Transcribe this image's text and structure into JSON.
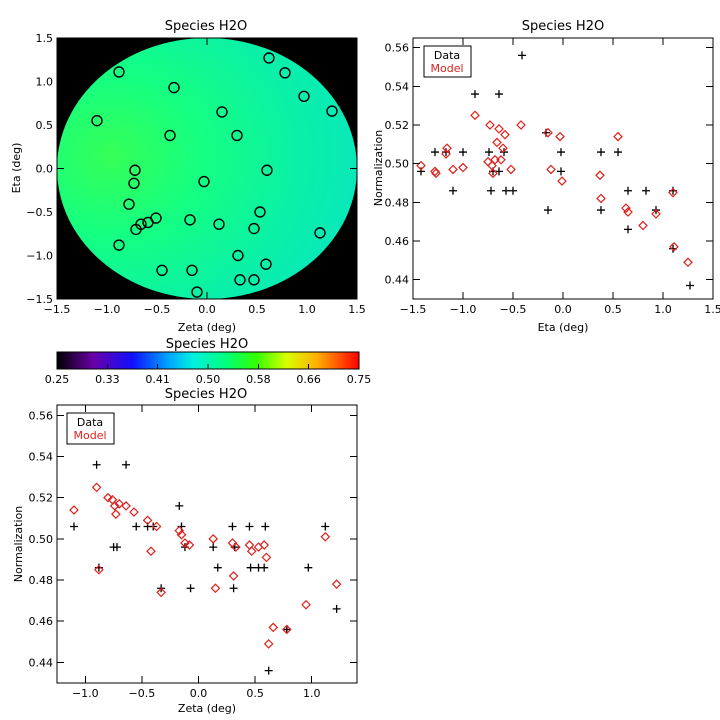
{
  "chart_data": [
    {
      "type": "heatmap",
      "title": "Species H2O",
      "xlabel": "Zeta (deg)",
      "ylabel": "Eta (deg)",
      "xlim": [
        -1.5,
        1.5
      ],
      "ylim": [
        -1.5,
        1.5
      ],
      "x_ticks": [
        "−1.5",
        "−1.0",
        "−0.5",
        "0.0",
        "0.5",
        "1.0",
        "1.5"
      ],
      "y_ticks": [
        "−1.5",
        "−1.0",
        "−0.5",
        "0.0",
        "0.5",
        "1.0",
        "1.5"
      ],
      "field_value_approx": 0.5,
      "markers": [
        {
          "x": -0.88,
          "y": 1.11
        },
        {
          "x": -0.33,
          "y": 0.93
        },
        {
          "x": -1.1,
          "y": 0.55
        },
        {
          "x": -0.37,
          "y": 0.38
        },
        {
          "x": 0.15,
          "y": 0.65
        },
        {
          "x": 0.3,
          "y": 0.38
        },
        {
          "x": 0.62,
          "y": 1.27
        },
        {
          "x": 0.78,
          "y": 1.1
        },
        {
          "x": 0.97,
          "y": 0.83
        },
        {
          "x": 1.25,
          "y": 0.66
        },
        {
          "x": -0.72,
          "y": -0.02
        },
        {
          "x": -0.73,
          "y": -0.17
        },
        {
          "x": -0.03,
          "y": -0.15
        },
        {
          "x": 0.6,
          "y": -0.02
        },
        {
          "x": -0.78,
          "y": -0.41
        },
        {
          "x": -0.51,
          "y": -0.57
        },
        {
          "x": -0.59,
          "y": -0.62
        },
        {
          "x": -0.66,
          "y": -0.64
        },
        {
          "x": -0.71,
          "y": -0.7
        },
        {
          "x": -0.88,
          "y": -0.88
        },
        {
          "x": -0.17,
          "y": -0.59
        },
        {
          "x": 0.12,
          "y": -0.64
        },
        {
          "x": 0.53,
          "y": -0.5
        },
        {
          "x": 0.47,
          "y": -0.69
        },
        {
          "x": 1.13,
          "y": -0.74
        },
        {
          "x": 0.31,
          "y": -1.0
        },
        {
          "x": 0.59,
          "y": -1.1
        },
        {
          "x": -0.45,
          "y": -1.17
        },
        {
          "x": -0.15,
          "y": -1.17
        },
        {
          "x": 0.33,
          "y": -1.28
        },
        {
          "x": 0.47,
          "y": -1.28
        },
        {
          "x": -0.1,
          "y": -1.42
        }
      ]
    },
    {
      "type": "scatter",
      "title": "Species H2O",
      "xlabel": "Eta (deg)",
      "ylabel": "Normalization",
      "xlim": [
        -1.5,
        1.5
      ],
      "ylim": [
        0.43,
        0.565
      ],
      "x_ticks": [
        "−1.5",
        "−1.0",
        "−0.5",
        "0.0",
        "0.5",
        "1.0",
        "1.5"
      ],
      "y_ticks": [
        "0.44",
        "0.46",
        "0.48",
        "0.50",
        "0.52",
        "0.54",
        "0.56"
      ],
      "legend": {
        "position": "top-left",
        "entries": [
          "Data",
          "Model"
        ]
      },
      "series": [
        {
          "name": "Data",
          "marker": "plus",
          "color": "#000000",
          "points": [
            [
              -1.42,
              0.496
            ],
            [
              -1.28,
              0.506
            ],
            [
              -1.17,
              0.506
            ],
            [
              -1.1,
              0.486
            ],
            [
              -1.0,
              0.506
            ],
            [
              -0.88,
              0.536
            ],
            [
              -0.74,
              0.506
            ],
            [
              -0.72,
              0.486
            ],
            [
              -0.7,
              0.496
            ],
            [
              -0.64,
              0.536
            ],
            [
              -0.64,
              0.496
            ],
            [
              -0.59,
              0.506
            ],
            [
              -0.57,
              0.486
            ],
            [
              -0.5,
              0.486
            ],
            [
              -0.41,
              0.556
            ],
            [
              -0.17,
              0.516
            ],
            [
              -0.15,
              0.476
            ],
            [
              -0.02,
              0.506
            ],
            [
              -0.02,
              0.496
            ],
            [
              0.38,
              0.506
            ],
            [
              0.38,
              0.476
            ],
            [
              0.55,
              0.506
            ],
            [
              0.65,
              0.486
            ],
            [
              0.65,
              0.466
            ],
            [
              0.83,
              0.486
            ],
            [
              0.93,
              0.476
            ],
            [
              1.1,
              0.486
            ],
            [
              1.1,
              0.456
            ],
            [
              1.27,
              0.437
            ]
          ]
        },
        {
          "name": "Model",
          "marker": "diamond",
          "color": "#e0201b",
          "points": [
            [
              -1.42,
              0.499
            ],
            [
              -1.28,
              0.496
            ],
            [
              -1.27,
              0.495
            ],
            [
              -1.17,
              0.505
            ],
            [
              -1.16,
              0.508
            ],
            [
              -1.1,
              0.497
            ],
            [
              -1.0,
              0.498
            ],
            [
              -0.88,
              0.525
            ],
            [
              -0.75,
              0.501
            ],
            [
              -0.73,
              0.52
            ],
            [
              -0.71,
              0.499
            ],
            [
              -0.7,
              0.495
            ],
            [
              -0.68,
              0.502
            ],
            [
              -0.66,
              0.511
            ],
            [
              -0.64,
              0.518
            ],
            [
              -0.62,
              0.502
            ],
            [
              -0.6,
              0.508
            ],
            [
              -0.58,
              0.515
            ],
            [
              -0.52,
              0.497
            ],
            [
              -0.42,
              0.52
            ],
            [
              -0.15,
              0.516
            ],
            [
              -0.12,
              0.497
            ],
            [
              -0.03,
              0.514
            ],
            [
              -0.01,
              0.491
            ],
            [
              0.37,
              0.494
            ],
            [
              0.38,
              0.482
            ],
            [
              0.55,
              0.514
            ],
            [
              0.63,
              0.477
            ],
            [
              0.65,
              0.475
            ],
            [
              0.8,
              0.468
            ],
            [
              0.93,
              0.474
            ],
            [
              1.11,
              0.457
            ],
            [
              1.1,
              0.485
            ],
            [
              1.25,
              0.449
            ]
          ]
        }
      ]
    },
    {
      "type": "colorbar",
      "title": "Species H2O",
      "range": [
        0.25,
        0.75
      ],
      "tick_labels": [
        "0.25",
        "0.33",
        "0.41",
        "0.50",
        "0.58",
        "0.66",
        "0.75"
      ]
    },
    {
      "type": "scatter",
      "title": "Species H2O",
      "xlabel": "Zeta (deg)",
      "ylabel": "Normalization",
      "xlim": [
        -1.25,
        1.4
      ],
      "ylim": [
        0.43,
        0.565
      ],
      "x_ticks": [
        "−1.0",
        "−0.5",
        "0.0",
        "0.5",
        "1.0"
      ],
      "y_ticks": [
        "0.44",
        "0.46",
        "0.48",
        "0.50",
        "0.52",
        "0.54",
        "0.56"
      ],
      "legend": {
        "position": "top-left",
        "entries": [
          "Data",
          "Model"
        ]
      },
      "series": [
        {
          "name": "Data",
          "marker": "plus",
          "color": "#000000",
          "points": [
            [
              -1.1,
              0.506
            ],
            [
              -0.9,
              0.536
            ],
            [
              -0.88,
              0.486
            ],
            [
              -0.78,
              0.556
            ],
            [
              -0.75,
              0.496
            ],
            [
              -0.72,
              0.496
            ],
            [
              -0.64,
              0.536
            ],
            [
              -0.55,
              0.506
            ],
            [
              -0.45,
              0.506
            ],
            [
              -0.4,
              0.506
            ],
            [
              -0.33,
              0.476
            ],
            [
              -0.17,
              0.516
            ],
            [
              -0.15,
              0.506
            ],
            [
              -0.12,
              0.496
            ],
            [
              -0.07,
              0.476
            ],
            [
              0.13,
              0.496
            ],
            [
              0.17,
              0.486
            ],
            [
              0.3,
              0.506
            ],
            [
              0.31,
              0.476
            ],
            [
              0.32,
              0.496
            ],
            [
              0.45,
              0.506
            ],
            [
              0.46,
              0.486
            ],
            [
              0.53,
              0.486
            ],
            [
              0.58,
              0.486
            ],
            [
              0.59,
              0.506
            ],
            [
              0.62,
              0.436
            ],
            [
              0.97,
              0.486
            ],
            [
              1.12,
              0.506
            ],
            [
              1.22,
              0.466
            ],
            [
              0.78,
              0.456
            ]
          ]
        },
        {
          "name": "Model",
          "marker": "diamond",
          "color": "#e0201b",
          "points": [
            [
              -1.1,
              0.514
            ],
            [
              -0.9,
              0.525
            ],
            [
              -0.88,
              0.485
            ],
            [
              -0.8,
              0.52
            ],
            [
              -0.76,
              0.519
            ],
            [
              -0.74,
              0.516
            ],
            [
              -0.73,
              0.512
            ],
            [
              -0.7,
              0.517
            ],
            [
              -0.64,
              0.516
            ],
            [
              -0.57,
              0.513
            ],
            [
              -0.45,
              0.509
            ],
            [
              -0.42,
              0.494
            ],
            [
              -0.37,
              0.506
            ],
            [
              -0.33,
              0.474
            ],
            [
              -0.17,
              0.504
            ],
            [
              -0.15,
              0.502
            ],
            [
              -0.12,
              0.498
            ],
            [
              -0.08,
              0.497
            ],
            [
              0.13,
              0.5
            ],
            [
              0.15,
              0.476
            ],
            [
              0.3,
              0.498
            ],
            [
              0.31,
              0.482
            ],
            [
              0.33,
              0.496
            ],
            [
              0.45,
              0.497
            ],
            [
              0.47,
              0.494
            ],
            [
              0.53,
              0.496
            ],
            [
              0.58,
              0.497
            ],
            [
              0.6,
              0.491
            ],
            [
              0.62,
              0.449
            ],
            [
              0.66,
              0.457
            ],
            [
              0.78,
              0.456
            ],
            [
              0.95,
              0.468
            ],
            [
              1.12,
              0.501
            ],
            [
              1.22,
              0.478
            ]
          ]
        }
      ]
    }
  ]
}
